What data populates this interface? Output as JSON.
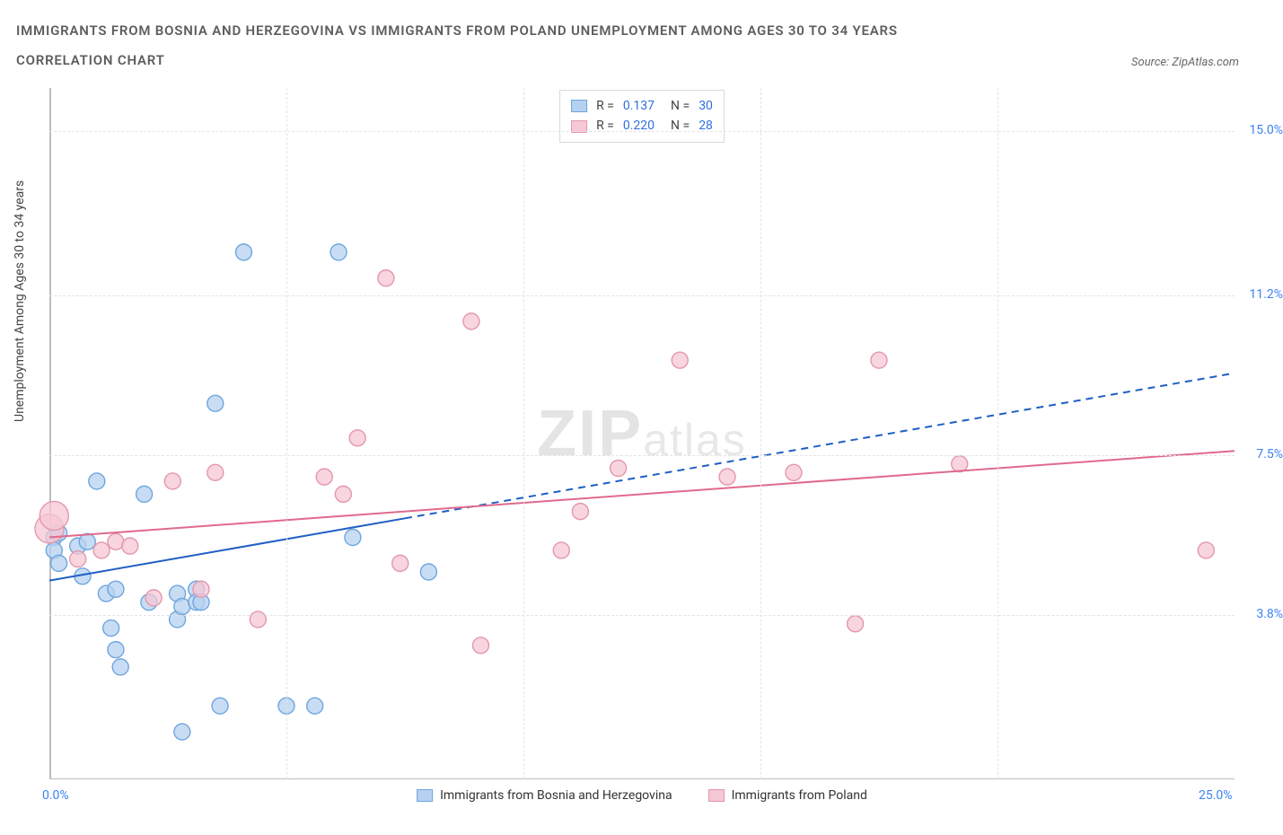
{
  "title_line1": "IMMIGRANTS FROM BOSNIA AND HERZEGOVINA VS IMMIGRANTS FROM POLAND UNEMPLOYMENT AMONG AGES 30 TO 34 YEARS",
  "title_line2": "CORRELATION CHART",
  "source_label": "Source: ZipAtlas.com",
  "y_axis_label": "Unemployment Among Ages 30 to 34 years",
  "watermark_main": "ZIP",
  "watermark_sub": "atlas",
  "chart": {
    "type": "scatter",
    "x_domain": [
      0,
      25
    ],
    "y_domain": [
      0,
      16
    ],
    "x_ticks": [
      {
        "v": 0,
        "label": "0.0%"
      },
      {
        "v": 25,
        "label": "25.0%"
      }
    ],
    "x_grid": [
      5,
      10,
      15,
      20
    ],
    "y_ticks": [
      {
        "v": 3.8,
        "label": "3.8%"
      },
      {
        "v": 7.5,
        "label": "7.5%"
      },
      {
        "v": 11.2,
        "label": "11.2%"
      },
      {
        "v": 15.0,
        "label": "15.0%"
      }
    ],
    "colors": {
      "series_a_fill": "#b6d1f0",
      "series_a_stroke": "#6ea6df",
      "series_a_line": "#1f5fc4",
      "series_b_fill": "#f6c7d4",
      "series_b_stroke": "#e497ab",
      "series_b_line": "#e06a8c",
      "grid": "#e3e3e3",
      "axis": "#bdbdbd",
      "tick_text": "#3b82f6",
      "title_text": "#5d5d5d",
      "bg": "#ffffff"
    },
    "marker_radius": 9,
    "marker_opacity": 0.75,
    "line_width": 2,
    "series": [
      {
        "key": "a",
        "name": "Immigrants from Bosnia and Herzegovina",
        "R": "0.137",
        "N": "30",
        "points": [
          [
            0.1,
            5.6
          ],
          [
            0.1,
            5.3
          ],
          [
            0.2,
            5.7
          ],
          [
            0.2,
            5.0
          ],
          [
            0.6,
            5.4
          ],
          [
            0.7,
            4.7
          ],
          [
            0.8,
            5.5
          ],
          [
            1.0,
            6.9
          ],
          [
            1.2,
            4.3
          ],
          [
            1.3,
            3.5
          ],
          [
            1.4,
            3.0
          ],
          [
            1.4,
            4.4
          ],
          [
            1.5,
            2.6
          ],
          [
            2.0,
            6.6
          ],
          [
            2.1,
            4.1
          ],
          [
            2.7,
            3.7
          ],
          [
            2.7,
            4.3
          ],
          [
            2.8,
            4.0
          ],
          [
            2.8,
            1.1
          ],
          [
            3.1,
            4.4
          ],
          [
            3.1,
            4.1
          ],
          [
            3.2,
            4.1
          ],
          [
            3.5,
            8.7
          ],
          [
            3.6,
            1.7
          ],
          [
            4.1,
            12.2
          ],
          [
            5.0,
            1.7
          ],
          [
            5.6,
            1.7
          ],
          [
            6.1,
            12.2
          ],
          [
            6.4,
            5.6
          ],
          [
            8.0,
            4.8
          ]
        ],
        "trend": {
          "solid_to_x": 7.5,
          "y0": 4.6,
          "y1": 9.4
        }
      },
      {
        "key": "b",
        "name": "Immigrants from Poland",
        "R": "0.220",
        "N": "28",
        "points": [
          [
            0.0,
            5.8
          ],
          [
            0.1,
            6.1
          ],
          [
            0.6,
            5.1
          ],
          [
            1.1,
            5.3
          ],
          [
            1.4,
            5.5
          ],
          [
            1.7,
            5.4
          ],
          [
            2.2,
            4.2
          ],
          [
            2.6,
            6.9
          ],
          [
            3.2,
            4.4
          ],
          [
            3.5,
            7.1
          ],
          [
            4.4,
            3.7
          ],
          [
            5.8,
            7.0
          ],
          [
            6.2,
            6.6
          ],
          [
            6.5,
            7.9
          ],
          [
            7.1,
            11.6
          ],
          [
            7.4,
            5.0
          ],
          [
            8.9,
            10.6
          ],
          [
            9.1,
            3.1
          ],
          [
            10.8,
            5.3
          ],
          [
            11.2,
            6.2
          ],
          [
            13.3,
            9.7
          ],
          [
            14.3,
            7.0
          ],
          [
            15.7,
            7.1
          ],
          [
            17.0,
            3.6
          ],
          [
            17.5,
            9.7
          ],
          [
            19.2,
            7.3
          ],
          [
            24.4,
            5.3
          ],
          [
            12.0,
            7.2
          ]
        ],
        "trend": {
          "solid_to_x": 25,
          "y0": 5.6,
          "y1": 7.6
        }
      }
    ]
  },
  "legend_top": {
    "r_label": "R =",
    "n_label": "N ="
  }
}
